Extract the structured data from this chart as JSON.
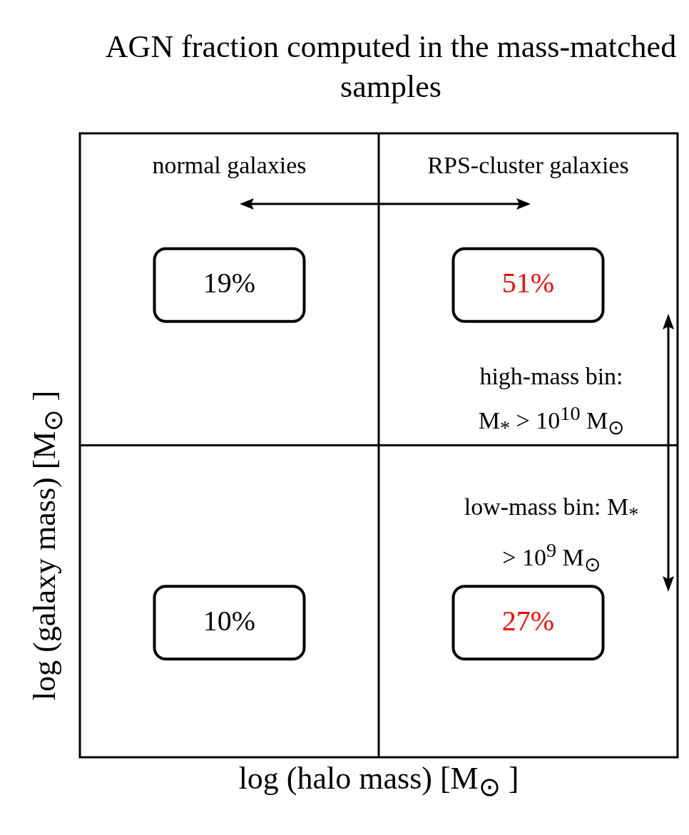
{
  "chart_data": {
    "type": "heatmap",
    "title": "AGN fraction computed in the mass-matched samples",
    "xlabel": "log (halo mass) [M$_{⊙}$ ]",
    "ylabel": "log (galaxy mass) [M$_{⊙}$ ]",
    "categories": [
      "normal galaxies",
      "RPS-cluster galaxies"
    ],
    "y_categories": [
      null,
      null
    ],
    "annotations": [
      "high-mass bin: M$_{*}$ > 10$^{10}$ M$_{⊙}$",
      "low-mass bin: M$_{*}$ > 10$^{9}$ M$_{⊙}$"
    ],
    "cells": [
      [
        19,
        51
      ],
      [
        10,
        27
      ]
    ],
    "cell_labels": [
      [
        "19%",
        "51%"
      ],
      [
        "10%",
        "27%"
      ]
    ],
    "colors": [
      [
        "#000000",
        "#ff0000"
      ],
      [
        "#000000",
        "#ff0000"
      ]
    ]
  }
}
